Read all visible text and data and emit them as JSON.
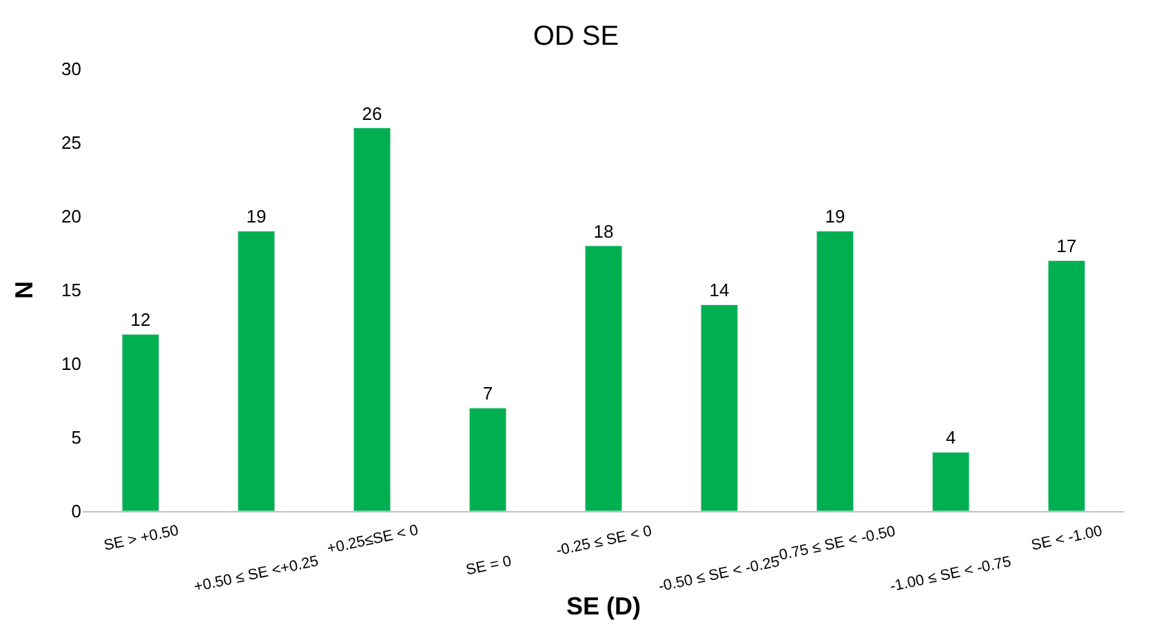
{
  "chart_data": {
    "type": "bar",
    "title": "OD SE",
    "xlabel": "SE (D)",
    "ylabel": "N",
    "categories": [
      "SE > +0.50",
      "+0.50 ≤ SE <+0.25",
      "+0.25≤SE < 0",
      "SE = 0",
      "-0.25 ≤ SE < 0",
      "-0.50 ≤ SE < -0.25",
      "-0.75 ≤ SE < -0.50",
      "-1.00 ≤ SE < -0.75",
      "SE < -1.00"
    ],
    "values": [
      12,
      19,
      26,
      7,
      18,
      14,
      19,
      4,
      17
    ],
    "color": "#00b050",
    "ylim": [
      0,
      30
    ],
    "yticks": [
      0,
      5,
      10,
      15,
      20,
      25,
      30
    ],
    "grid": false,
    "data_labels": true
  }
}
